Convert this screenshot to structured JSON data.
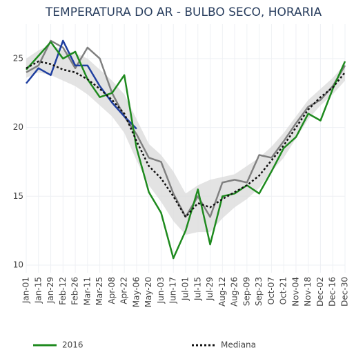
{
  "chart_data": {
    "type": "line",
    "title": "TEMPERATURA DO AR - BULBO SECO, HORARIA",
    "categories": [
      "Jan-01",
      "Jan-15",
      "Jan-29",
      "Feb-12",
      "Feb-26",
      "Mar-11",
      "Mar-25",
      "Apr-08",
      "Apr-22",
      "May-06",
      "May-20",
      "Jun-03",
      "Jun-17",
      "Jul-01",
      "Jul-15",
      "Jul-29",
      "Aug-12",
      "Aug-26",
      "Sep-09",
      "Sep-23",
      "Oct-07",
      "Oct-21",
      "Nov-04",
      "Nov-18",
      "Dec-02",
      "Dec-16",
      "Dec-30"
    ],
    "band": {
      "color": "#dcdcdc",
      "lower": [
        23.6,
        24.0,
        23.8,
        23.4,
        23.0,
        22.4,
        21.6,
        20.8,
        19.6,
        17.6,
        15.8,
        14.6,
        13.2,
        12.2,
        12.4,
        12.4,
        13.4,
        14.2,
        14.8,
        15.6,
        16.8,
        17.8,
        19.2,
        20.6,
        21.6,
        22.4,
        23.4
      ],
      "upper": [
        25.0,
        25.6,
        26.0,
        25.6,
        25.4,
        25.0,
        24.2,
        23.4,
        22.4,
        20.6,
        18.8,
        18.0,
        16.8,
        15.2,
        15.8,
        16.2,
        16.4,
        16.6,
        17.2,
        17.8,
        18.6,
        19.6,
        20.8,
        22.0,
        22.8,
        23.6,
        24.6
      ]
    },
    "series": [
      {
        "color": "#808080",
        "width": 2.5,
        "values": [
          24.0,
          24.5,
          26.3,
          25.8,
          24.3,
          25.8,
          25.0,
          22.5,
          20.8,
          19.5,
          17.8,
          17.5,
          15.2,
          13.5,
          15.0,
          13.5,
          16.0,
          16.2,
          16.0,
          18.0,
          17.8,
          19.0,
          20.3,
          21.5,
          22.0,
          23.0,
          24.5
        ]
      },
      {
        "color": "#1f3fa0",
        "width": 2.5,
        "values": [
          23.2,
          24.3,
          23.8,
          26.3,
          24.5,
          24.5,
          23.0,
          21.8,
          20.8,
          19.9,
          null,
          null,
          null,
          null,
          null,
          null,
          null,
          null,
          null,
          null,
          null,
          null,
          null,
          null,
          null,
          null,
          null
        ]
      },
      {
        "name": "2016",
        "color": "#1e8a1e",
        "width": 2.5,
        "values": [
          24.2,
          25.2,
          26.2,
          25.0,
          25.5,
          23.5,
          22.2,
          22.5,
          23.8,
          18.5,
          15.3,
          13.8,
          10.5,
          12.5,
          15.5,
          11.5,
          15.0,
          15.2,
          15.8,
          15.2,
          16.8,
          18.5,
          19.3,
          21.0,
          20.5,
          22.8,
          24.8
        ]
      },
      {
        "name": "Mediana",
        "color": "#111111",
        "width": 2.5,
        "dash": "3,3",
        "values": [
          24.3,
          24.8,
          24.6,
          24.2,
          24.0,
          23.5,
          22.8,
          22.0,
          21.0,
          19.0,
          17.2,
          16.3,
          15.0,
          13.5,
          14.5,
          14.2,
          14.8,
          15.3,
          15.8,
          16.5,
          17.6,
          18.7,
          20.0,
          21.3,
          22.2,
          22.9,
          24.0
        ]
      }
    ],
    "ylim": [
      9.45,
      27.5
    ],
    "yticks": [
      10,
      15,
      20,
      25
    ],
    "grid": true
  }
}
